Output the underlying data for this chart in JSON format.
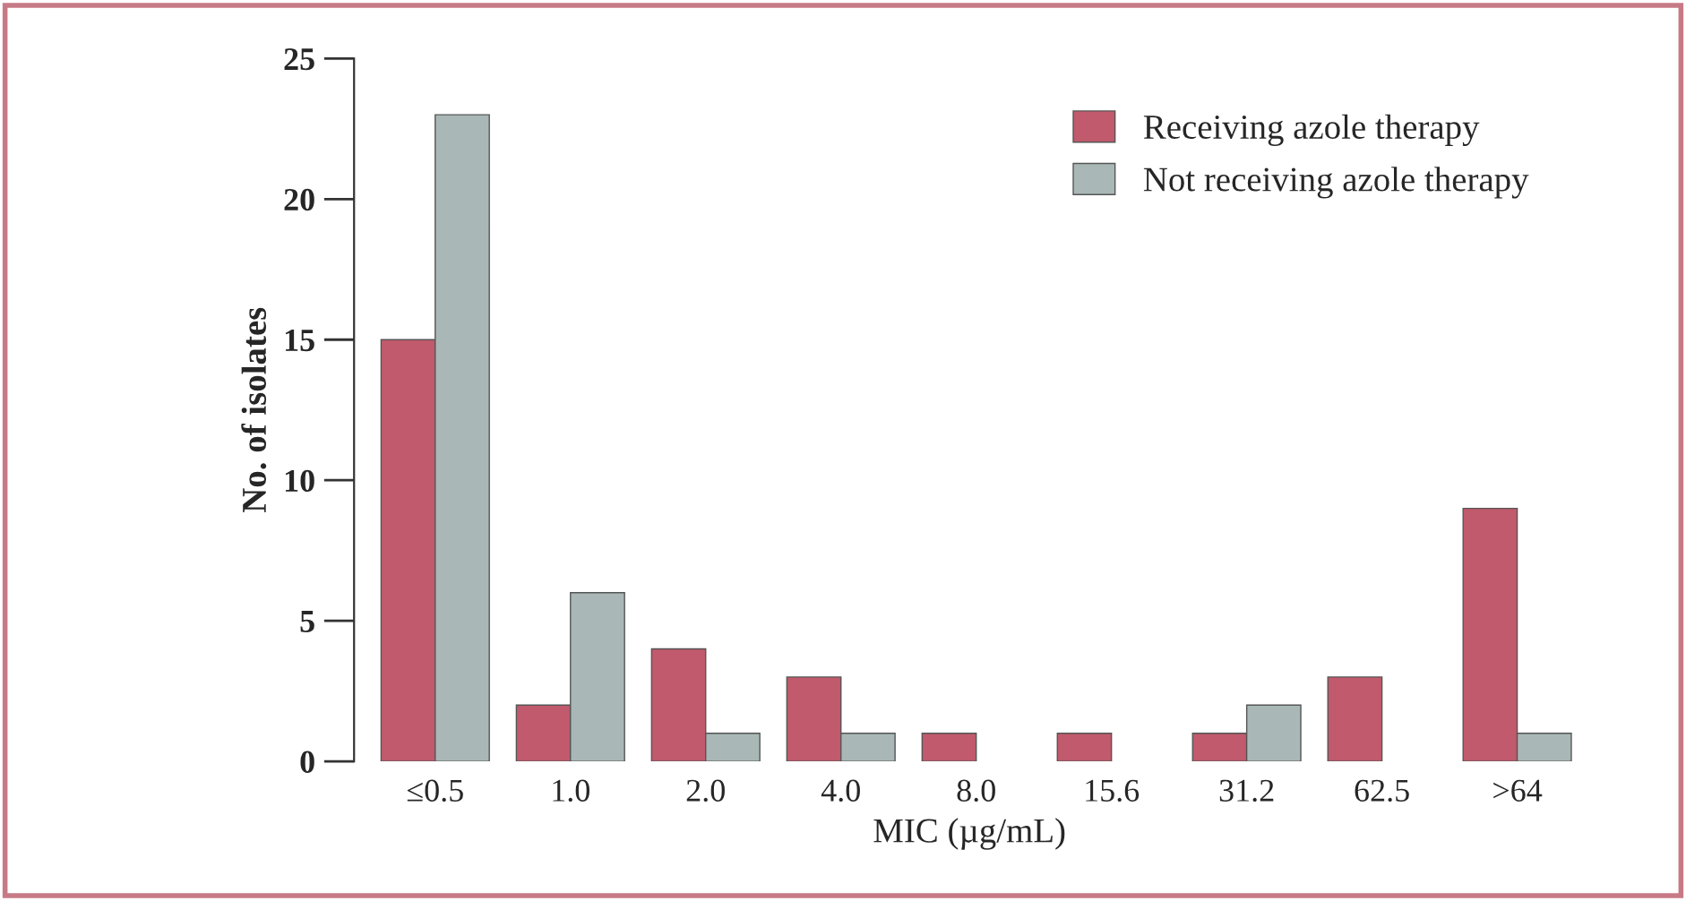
{
  "chart_data": {
    "type": "bar",
    "xlabel": "MIC (µg/mL)",
    "ylabel": "No. of isolates",
    "categories": [
      "≤0.5",
      "1.0",
      "2.0",
      "4.0",
      "8.0",
      "15.6",
      "31.2",
      "62.5",
      ">64"
    ],
    "series": [
      {
        "name": "Receiving azole therapy",
        "color": "#c05a6c",
        "values": [
          15,
          2,
          4,
          3,
          1,
          1,
          1,
          3,
          9
        ]
      },
      {
        "name": "Not receiving azole therapy",
        "color": "#a9b8b6",
        "values": [
          23,
          6,
          1,
          1,
          0,
          0,
          2,
          0,
          1
        ]
      }
    ],
    "ylim": [
      0,
      25
    ],
    "yticks": [
      0,
      5,
      10,
      15,
      20,
      25
    ],
    "grid": false,
    "legend": "top right"
  }
}
